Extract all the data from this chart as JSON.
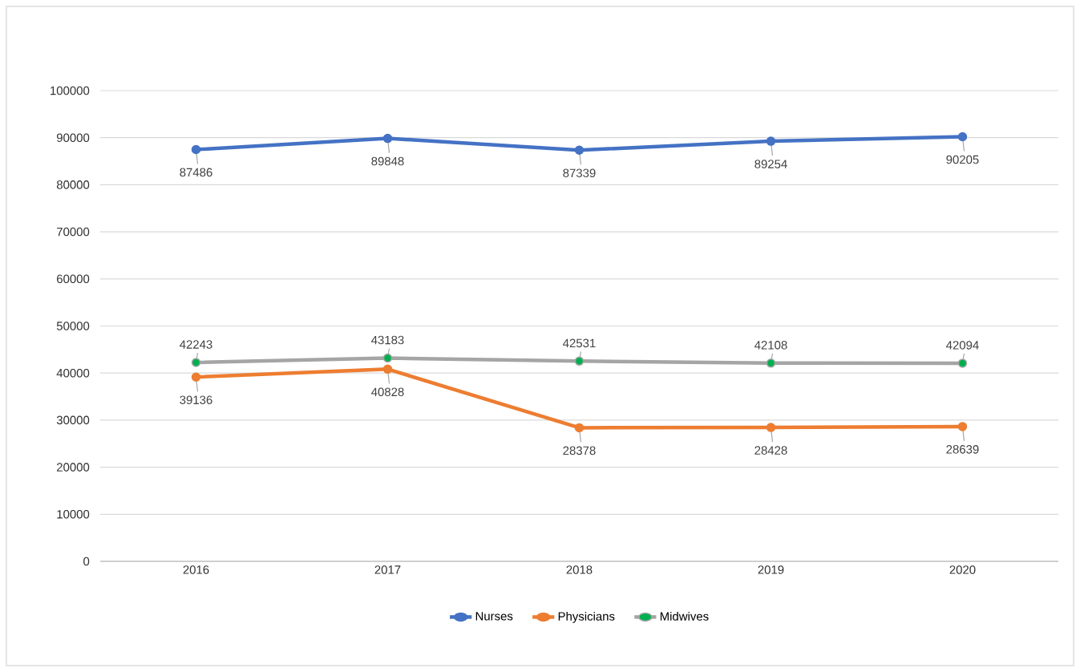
{
  "chart_data": {
    "type": "line",
    "categories": [
      "2016",
      "2017",
      "2018",
      "2019",
      "2020"
    ],
    "series": [
      {
        "name": "Nurses",
        "color": "#4472c4",
        "values": [
          87486,
          89848,
          87339,
          89254,
          90205
        ]
      },
      {
        "name": "Physicians",
        "color": "#ed7d31",
        "values": [
          39136,
          40828,
          28378,
          28428,
          28639
        ]
      },
      {
        "name": "Midwives",
        "color": "#a5a5a5",
        "values": [
          42243,
          43183,
          42531,
          42108,
          42094
        ]
      }
    ],
    "ylim": [
      0,
      100000
    ],
    "yticks": [
      0,
      10000,
      20000,
      30000,
      40000,
      50000,
      60000,
      70000,
      80000,
      90000,
      100000
    ],
    "grid": "y",
    "legend": "bottom",
    "marker": "circle",
    "line_style": "solid",
    "data_labels": true
  }
}
